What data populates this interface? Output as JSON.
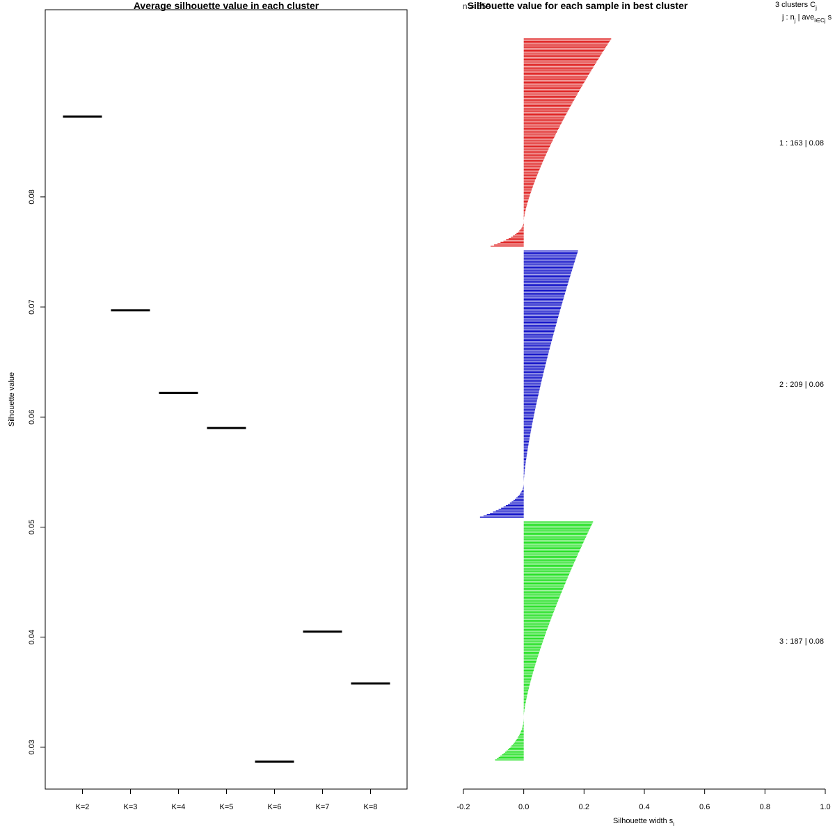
{
  "chart_data": [
    {
      "type": "line",
      "title": "Average silhouette value in each cluster",
      "xlabel": "",
      "ylabel": "Silhouette value",
      "categories": [
        "K=2",
        "K=3",
        "K=4",
        "K=5",
        "K=6",
        "K=7",
        "K=8"
      ],
      "values": [
        0.0873,
        0.0697,
        0.0622,
        0.059,
        0.0287,
        0.0405,
        0.0358
      ],
      "ylim": [
        0.0262,
        0.097
      ],
      "yticks": [
        0.03,
        0.04,
        0.05,
        0.06,
        0.07,
        0.08
      ],
      "ytick_labels": [
        "0.03",
        "0.04",
        "0.05",
        "0.06",
        "0.07",
        "0.08"
      ]
    },
    {
      "type": "bar",
      "orientation": "horizontal",
      "title": "Silhouette value for each sample in best cluster",
      "overlay_title_fragment": "n = 559",
      "xlabel": "Silhouette width s",
      "xlabel_subscript": "i",
      "xlim": [
        -0.2,
        1.0
      ],
      "xticks": [
        -0.2,
        0.0,
        0.2,
        0.4,
        0.6,
        0.8,
        1.0
      ],
      "xtick_labels": [
        "-0.2",
        "0.0",
        "0.2",
        "0.4",
        "0.6",
        "0.8",
        "1.0"
      ],
      "legend_header": {
        "line1": "3  clusters  C",
        "line1_sub": "j",
        "line2": "j :  n",
        "line2_sub": "j",
        "line2_mid": " | ave",
        "line2_mid_sub": "i∈Cj",
        "line2_tail": "  s"
      },
      "clusters": [
        {
          "id": 1,
          "n": 163,
          "label": "1 :  163  |  0.08",
          "color": "#DF2020",
          "max": 0.29,
          "min": -0.11,
          "neg_fraction": 0.12
        },
        {
          "id": 2,
          "n": 209,
          "label": "2 :  209  |  0.06",
          "color": "#1010C8",
          "max": 0.18,
          "min": -0.145,
          "neg_fraction": 0.13
        },
        {
          "id": 3,
          "n": 187,
          "label": "3 :  187  |  0.08",
          "color": "#20E020",
          "max": 0.23,
          "min": -0.095,
          "neg_fraction": 0.18
        }
      ]
    }
  ]
}
